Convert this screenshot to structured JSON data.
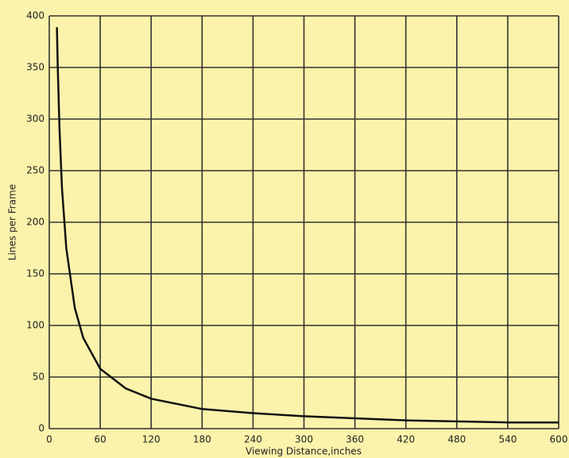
{
  "chart_data": {
    "type": "line",
    "x_label": "Viewing Distance,inches",
    "y_label": "Lines per Frame",
    "x": [
      9,
      10,
      12,
      15,
      20,
      30,
      40,
      60,
      90,
      120,
      180,
      240,
      300,
      360,
      420,
      480,
      540,
      600
    ],
    "values": [
      389,
      350,
      292,
      233,
      175,
      117,
      88,
      58,
      39,
      29,
      19,
      15,
      12,
      10,
      8,
      7,
      6,
      6
    ],
    "color": "#111111",
    "xlim": [
      0,
      600
    ],
    "xticks": [
      0,
      60,
      120,
      180,
      240,
      300,
      360,
      420,
      480,
      540,
      600
    ],
    "ylim": [
      0,
      400
    ],
    "yticks": [
      0,
      50,
      100,
      150,
      200,
      250,
      300,
      350,
      400
    ],
    "grid": true
  }
}
